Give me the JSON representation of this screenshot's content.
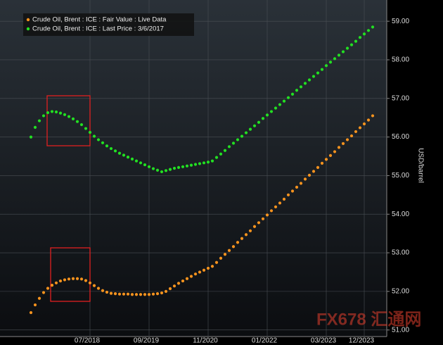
{
  "chart_data": {
    "type": "dot-line",
    "y_label": "USD/barrel",
    "watermark": "FX678 汇通网",
    "categories": [
      null,
      null,
      null,
      null,
      null,
      null,
      null,
      null,
      null,
      null,
      null,
      null,
      null,
      null,
      "07/2018",
      null,
      null,
      null,
      null,
      null,
      null,
      null,
      null,
      null,
      null,
      null,
      null,
      null,
      "09/2019",
      null,
      null,
      null,
      null,
      null,
      null,
      null,
      null,
      null,
      null,
      null,
      null,
      null,
      "11/2020",
      null,
      null,
      null,
      null,
      null,
      null,
      null,
      null,
      null,
      null,
      null,
      null,
      null,
      "01/2022",
      null,
      null,
      null,
      null,
      null,
      null,
      null,
      null,
      null,
      null,
      null,
      null,
      null,
      "03/2023",
      null,
      null,
      null,
      null,
      null,
      null,
      null,
      null,
      "12/2023",
      null,
      null
    ],
    "series": [
      {
        "name": "Crude Oil, Brent : ICE : Fair Value : Live Data",
        "color": "#f7931e",
        "values": [
          51.45,
          51.65,
          51.82,
          51.97,
          52.08,
          52.16,
          52.22,
          52.27,
          52.3,
          52.32,
          52.33,
          52.33,
          52.32,
          52.28,
          52.22,
          52.15,
          52.08,
          52.02,
          51.98,
          51.95,
          51.94,
          51.93,
          51.93,
          51.93,
          51.92,
          51.92,
          51.92,
          51.92,
          51.92,
          51.93,
          51.94,
          51.96,
          52.0,
          52.07,
          52.14,
          52.21,
          52.27,
          52.33,
          52.39,
          52.45,
          52.5,
          52.55,
          52.6,
          52.65,
          52.75,
          52.86,
          52.96,
          53.06,
          53.16,
          53.27,
          53.37,
          53.47,
          53.57,
          53.68,
          53.78,
          53.88,
          53.98,
          54.09,
          54.19,
          54.29,
          54.39,
          54.5,
          54.6,
          54.7,
          54.8,
          54.91,
          55.01,
          55.11,
          55.21,
          55.32,
          55.42,
          55.52,
          55.62,
          55.73,
          55.83,
          55.93,
          56.03,
          56.14,
          56.24,
          56.34,
          56.44,
          56.55
        ]
      },
      {
        "name": "Crude Oil, Brent : ICE : Last Price : 3/6/2017",
        "color": "#22e022",
        "values": [
          56.0,
          56.25,
          56.42,
          56.55,
          56.63,
          56.66,
          56.65,
          56.62,
          56.58,
          56.53,
          56.47,
          56.4,
          56.32,
          56.22,
          56.12,
          56.02,
          55.93,
          55.85,
          55.77,
          55.7,
          55.64,
          55.58,
          55.53,
          55.48,
          55.43,
          55.38,
          55.33,
          55.28,
          55.23,
          55.18,
          55.14,
          55.1,
          55.13,
          55.16,
          55.19,
          55.21,
          55.23,
          55.25,
          55.27,
          55.29,
          55.31,
          55.33,
          55.35,
          55.38,
          55.47,
          55.56,
          55.65,
          55.75,
          55.84,
          55.93,
          56.02,
          56.11,
          56.2,
          56.29,
          56.38,
          56.48,
          56.57,
          56.66,
          56.75,
          56.84,
          56.93,
          57.02,
          57.11,
          57.21,
          57.3,
          57.39,
          57.48,
          57.57,
          57.66,
          57.75,
          57.85,
          57.94,
          58.03,
          58.12,
          58.21,
          58.3,
          58.39,
          58.48,
          58.58,
          58.67,
          58.76,
          58.85
        ]
      }
    ],
    "ylim": [
      50.83,
      59.55
    ],
    "yticks": [
      {
        "value": 51,
        "label": "51.00"
      },
      {
        "value": 52,
        "label": "52.00"
      },
      {
        "value": 53,
        "label": "53.00"
      },
      {
        "value": 54,
        "label": "54.00"
      },
      {
        "value": 55,
        "label": "55.00"
      },
      {
        "value": 56,
        "label": "56.00"
      },
      {
        "value": 57,
        "label": "57.00"
      },
      {
        "value": 58,
        "label": "58.00"
      },
      {
        "value": 59,
        "label": "59.00"
      }
    ],
    "grid": true
  }
}
